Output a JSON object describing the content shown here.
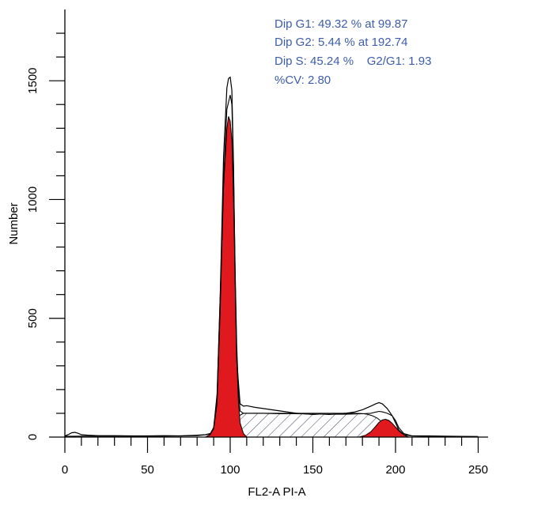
{
  "chart_data": {
    "type": "area",
    "title": "",
    "xlabel": "FL2-A PI-A",
    "ylabel": "Number",
    "xlim": [
      0,
      256
    ],
    "ylim": [
      0,
      1800
    ],
    "x_ticks": [
      0,
      50,
      100,
      150,
      200,
      250
    ],
    "x_tick_labels": [
      "0",
      "50",
      "100",
      "150",
      "200",
      "250"
    ],
    "y_ticks": [
      0,
      500,
      1000,
      1500
    ],
    "y_tick_labels": [
      "0",
      "500",
      "1000",
      "1500"
    ],
    "grid": false,
    "annotations": [
      "Dip G1: 49.32 % at 99.87",
      "Dip G2: 5.44 % at 192.74",
      "Dip S: 45.24 %    G2/G1: 1.93",
      "%CV: 2.80"
    ],
    "series": [
      {
        "x": [
          0,
          2,
          4,
          6,
          8,
          10,
          14,
          20,
          30,
          40,
          50,
          60,
          70,
          80,
          85,
          88,
          90,
          92,
          94,
          96,
          98,
          99,
          100,
          101,
          102,
          103,
          104,
          106,
          108,
          110,
          115,
          120,
          125,
          130,
          135,
          140,
          145,
          150,
          155,
          160,
          165,
          170,
          175,
          180,
          185,
          188,
          190,
          192,
          195,
          198,
          200,
          202,
          205,
          210,
          220,
          230,
          240,
          250
        ],
        "values": [
          5,
          10,
          18,
          20,
          16,
          10,
          8,
          6,
          6,
          5,
          5,
          6,
          5,
          8,
          10,
          15,
          40,
          150,
          600,
          1180,
          1470,
          1510,
          1515,
          1460,
          1150,
          650,
          320,
          140,
          130,
          132,
          125,
          120,
          115,
          110,
          105,
          100,
          98,
          95,
          97,
          95,
          98,
          100,
          105,
          115,
          130,
          140,
          145,
          140,
          120,
          90,
          60,
          30,
          10,
          5,
          5,
          4,
          3,
          2
        ]
      },
      {
        "x": [
          0,
          10,
          20,
          40,
          60,
          80,
          88,
          90,
          92,
          94,
          96,
          98,
          100,
          101,
          102,
          103,
          104,
          105,
          106,
          108,
          110,
          115,
          120,
          130,
          140,
          150,
          160,
          170,
          180,
          185,
          188,
          190,
          192,
          195,
          198,
          200,
          202,
          205,
          210,
          220,
          250
        ],
        "values": [
          3,
          4,
          4,
          4,
          4,
          6,
          12,
          35,
          140,
          540,
          1080,
          1380,
          1440,
          1400,
          1120,
          700,
          380,
          200,
          110,
          100,
          100,
          100,
          100,
          98,
          98,
          97,
          96,
          96,
          98,
          100,
          105,
          108,
          106,
          100,
          90,
          70,
          40,
          15,
          5,
          3,
          2
        ]
      },
      {
        "name": "G1",
        "x": [
          85,
          88,
          90,
          92,
          94,
          96,
          98,
          99,
          100,
          101,
          102,
          103,
          104,
          105,
          106,
          108,
          110
        ],
        "values": [
          0,
          10,
          40,
          180,
          600,
          1050,
          1300,
          1350,
          1330,
          1250,
          1000,
          650,
          330,
          150,
          60,
          15,
          0
        ]
      },
      {
        "name": "S",
        "x": [
          96,
          98,
          100,
          102,
          104,
          106,
          108,
          110,
          120,
          140,
          160,
          175,
          180,
          183,
          186,
          189,
          192,
          195,
          198,
          200,
          203
        ],
        "values": [
          0,
          8,
          25,
          50,
          75,
          92,
          100,
          100,
          100,
          100,
          100,
          100,
          99,
          96,
          90,
          80,
          62,
          40,
          18,
          5,
          0
        ]
      },
      {
        "name": "G2",
        "x": [
          178,
          182,
          185,
          188,
          190,
          192,
          194,
          196,
          198,
          200,
          203,
          206,
          208
        ],
        "values": [
          0,
          8,
          22,
          45,
          62,
          72,
          75,
          70,
          58,
          42,
          20,
          6,
          0
        ]
      }
    ]
  }
}
